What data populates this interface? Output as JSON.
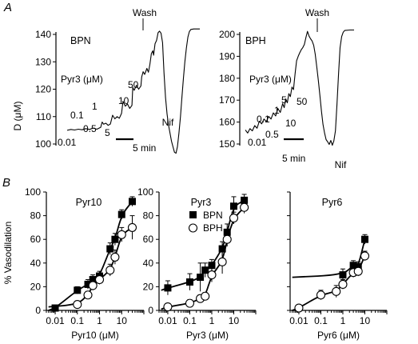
{
  "panel_a": {
    "letter": "A",
    "ylabel": "D (μM)",
    "traces": [
      {
        "name": "BPN",
        "y_ticks": [
          100,
          110,
          120,
          130,
          140
        ],
        "drug": "Pyr3 (μM)",
        "dose_labels": [
          "0.01",
          "0.1",
          "0.5",
          "1",
          "5",
          "10",
          "50"
        ],
        "wash_label": "Wash",
        "nif_label": "Nif",
        "scale_label": "5 min",
        "trace": [
          [
            0,
            105
          ],
          [
            5,
            105.3
          ],
          [
            10,
            105.1
          ],
          [
            15,
            105.4
          ],
          [
            20,
            105.2
          ],
          [
            25,
            105.6
          ],
          [
            30,
            105.3
          ],
          [
            35,
            105.8
          ],
          [
            40,
            105.4
          ],
          [
            45,
            106.1
          ],
          [
            47,
            108
          ],
          [
            49,
            107.2
          ],
          [
            52,
            107.6
          ],
          [
            55,
            106.8
          ],
          [
            58,
            107.3
          ],
          [
            61,
            110.5
          ],
          [
            64,
            109.2
          ],
          [
            67,
            110
          ],
          [
            70,
            109.4
          ],
          [
            73,
            111.2
          ],
          [
            75,
            115.6
          ],
          [
            78,
            113.8
          ],
          [
            81,
            114.6
          ],
          [
            84,
            113
          ],
          [
            87,
            114.1
          ],
          [
            88,
            120.6
          ],
          [
            90,
            119.6
          ],
          [
            93,
            121.4
          ],
          [
            96,
            120
          ],
          [
            99,
            121.2
          ],
          [
            100,
            124.5
          ],
          [
            102,
            126.4
          ],
          [
            104,
            125.4
          ],
          [
            107,
            127.6
          ],
          [
            109,
            126.2
          ],
          [
            111,
            129
          ],
          [
            113,
            133
          ],
          [
            115,
            134
          ],
          [
            116,
            132.4
          ],
          [
            118,
            136.6
          ],
          [
            120,
            137.8
          ],
          [
            122,
            140.6
          ],
          [
            124,
            141.2
          ],
          [
            126,
            140.4
          ],
          [
            128,
            137
          ],
          [
            130,
            126
          ],
          [
            132,
            117
          ],
          [
            134,
            111
          ],
          [
            136,
            107
          ],
          [
            138,
            104
          ],
          [
            140,
            101
          ],
          [
            142,
            99
          ],
          [
            144,
            97
          ],
          [
            146,
            96.6
          ],
          [
            148,
            99
          ],
          [
            150,
            104
          ],
          [
            152,
            110
          ],
          [
            154,
            117
          ],
          [
            156,
            124
          ],
          [
            158,
            130
          ],
          [
            160,
            135
          ],
          [
            162,
            139
          ],
          [
            164,
            141
          ],
          [
            166,
            141.8
          ],
          [
            170,
            142
          ],
          [
            178,
            142
          ]
        ]
      },
      {
        "name": "BPH",
        "y_ticks": [
          150,
          160,
          170,
          180,
          190,
          200
        ],
        "drug": "Pyr3 (μM)",
        "dose_labels": [
          "0.01",
          "0.1",
          "0.5",
          "1",
          "5",
          "10",
          "50"
        ],
        "wash_label": "Wash",
        "nif_label": "Nif",
        "scale_label": "5 min",
        "trace": [
          [
            0,
            156.4
          ],
          [
            3,
            155
          ],
          [
            6,
            157
          ],
          [
            9,
            156
          ],
          [
            12,
            158.4
          ],
          [
            15,
            157.2
          ],
          [
            18,
            160.4
          ],
          [
            21,
            159.2
          ],
          [
            24,
            161.4
          ],
          [
            27,
            160.2
          ],
          [
            30,
            162.6
          ],
          [
            33,
            161.4
          ],
          [
            36,
            164.2
          ],
          [
            39,
            162.8
          ],
          [
            42,
            166.2
          ],
          [
            45,
            164.4
          ],
          [
            48,
            168.4
          ],
          [
            50,
            166.6
          ],
          [
            52,
            170.6
          ],
          [
            54,
            168.8
          ],
          [
            56,
            173
          ],
          [
            58,
            171.6
          ],
          [
            60,
            176
          ],
          [
            62,
            174.8
          ],
          [
            64,
            182
          ],
          [
            66,
            188
          ],
          [
            68,
            190
          ],
          [
            70,
            191.6
          ],
          [
            72,
            193
          ],
          [
            74,
            194
          ],
          [
            76,
            195.4
          ],
          [
            78,
            198.6
          ],
          [
            80,
            201.4
          ],
          [
            82,
            199.2
          ],
          [
            84,
            198
          ],
          [
            86,
            197
          ],
          [
            88,
            195
          ],
          [
            90,
            191
          ],
          [
            92,
            185
          ],
          [
            94,
            179
          ],
          [
            96,
            172
          ],
          [
            98,
            165
          ],
          [
            100,
            159
          ],
          [
            102,
            155
          ],
          [
            104,
            152
          ],
          [
            106,
            151
          ],
          [
            108,
            149.8
          ],
          [
            110,
            151.6
          ],
          [
            112,
            149.4
          ],
          [
            114,
            151.4
          ],
          [
            116,
            156
          ],
          [
            118,
            168
          ],
          [
            120,
            182
          ],
          [
            122,
            194
          ],
          [
            124,
            199
          ],
          [
            126,
            201
          ],
          [
            128,
            201.8
          ],
          [
            135,
            202
          ],
          [
            140,
            202
          ]
        ]
      }
    ]
  },
  "panel_b": {
    "letter": "B",
    "ylabel": "% Vasodilation",
    "legend": [
      "BPN",
      "BPH"
    ]
  },
  "chart_data": [
    {
      "type": "scatter",
      "title": "Pyr10",
      "xlabel": "Pyr10 (μM)",
      "ylabel": "% Vasodilation",
      "x_scale": "log",
      "xlim": [
        0.004,
        100
      ],
      "ylim": [
        0,
        100
      ],
      "x_tick_labels": [
        "0.01",
        "0.1",
        "1",
        "10"
      ],
      "y_tick_labels": [
        "0",
        "20",
        "40",
        "60",
        "80",
        "100"
      ],
      "series": [
        {
          "name": "BPN",
          "marker": "filled-square",
          "x": [
            0.01,
            0.1,
            0.3,
            0.5,
            1,
            3,
            5,
            10,
            30
          ],
          "y": [
            2,
            17,
            22,
            26,
            29,
            52,
            60,
            81,
            92
          ],
          "err": [
            2,
            3,
            4,
            4,
            4,
            5,
            5,
            4,
            4
          ]
        },
        {
          "name": "BPH",
          "marker": "open-circle",
          "x": [
            0.1,
            0.3,
            0.5,
            1,
            3,
            5,
            10,
            30
          ],
          "y": [
            5,
            13,
            21,
            26,
            34,
            45,
            64,
            70
          ],
          "err": [
            2,
            3,
            4,
            4,
            5,
            6,
            6,
            10
          ]
        }
      ]
    },
    {
      "type": "scatter",
      "title": "Pyr3",
      "xlabel": "Pyr3 (μM)",
      "x_scale": "log",
      "xlim": [
        0.004,
        100
      ],
      "ylim": [
        0,
        100
      ],
      "x_tick_labels": [
        "0.01",
        "0.1",
        "1",
        "10"
      ],
      "series": [
        {
          "name": "BPN",
          "marker": "filled-square",
          "x": [
            0.01,
            0.1,
            0.3,
            0.5,
            1,
            3,
            5,
            10,
            30
          ],
          "y": [
            19,
            24,
            28,
            34,
            38,
            52,
            66,
            88,
            93
          ],
          "err": [
            6,
            7,
            12,
            6,
            5,
            6,
            7,
            8,
            5
          ]
        },
        {
          "name": "BPH",
          "marker": "open-circle",
          "x": [
            0.01,
            0.1,
            0.3,
            0.5,
            1,
            3,
            5,
            10,
            30
          ],
          "y": [
            3,
            6,
            10,
            12,
            30,
            41,
            60,
            78,
            87
          ],
          "err": [
            2,
            3,
            3,
            3,
            6,
            10,
            6,
            5,
            5
          ]
        }
      ]
    },
    {
      "type": "scatter",
      "title": "Pyr6",
      "xlabel": "Pyr6 (μM)",
      "x_scale": "log",
      "xlim": [
        0.004,
        100
      ],
      "ylim": [
        0,
        100
      ],
      "x_tick_labels": [
        "0.01",
        "0.1",
        "1",
        "10"
      ],
      "series": [
        {
          "name": "BPN",
          "marker": "filled-square",
          "x": [
            1,
            3,
            5,
            10
          ],
          "y": [
            30,
            38,
            37,
            60
          ],
          "err": [
            5,
            4,
            4,
            4
          ]
        },
        {
          "name": "BPH",
          "marker": "open-circle",
          "x": [
            0.01,
            0.1,
            0.5,
            1,
            3,
            5,
            10
          ],
          "y": [
            2,
            13,
            16,
            22,
            32,
            33,
            46
          ],
          "err": [
            1,
            4,
            5,
            4,
            4,
            4,
            4
          ]
        }
      ]
    }
  ]
}
